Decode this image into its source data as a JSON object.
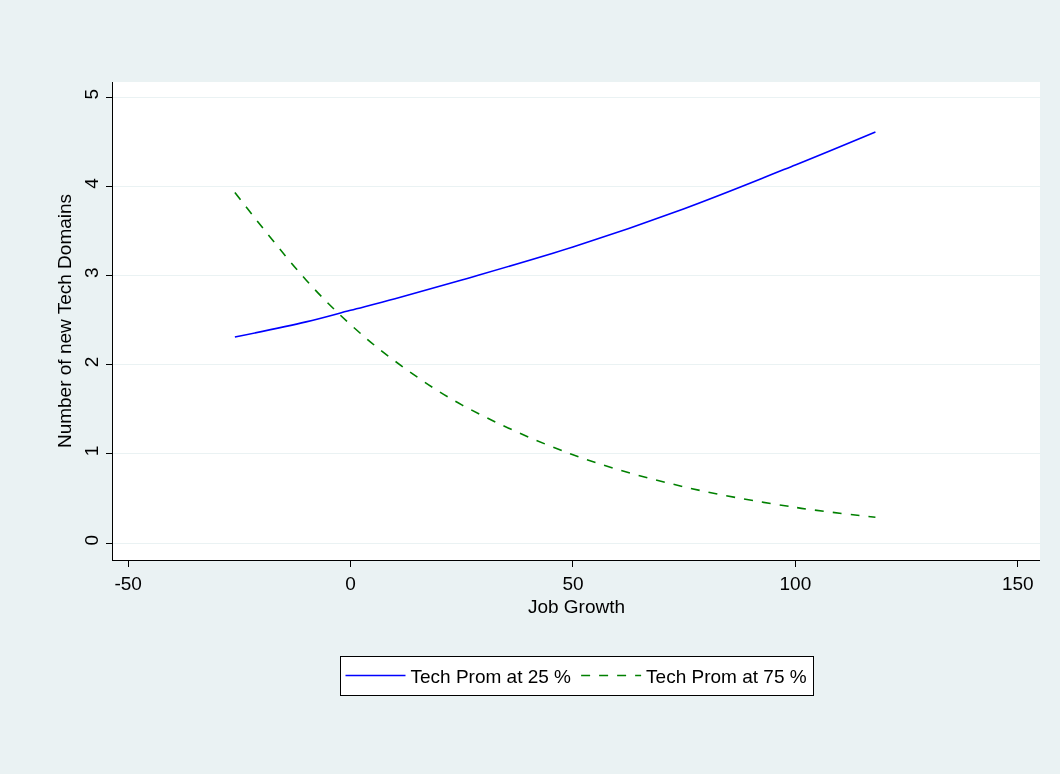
{
  "chart_data": {
    "type": "line",
    "xlabel": "Job Growth",
    "ylabel": "Number of new Tech Domains",
    "xlim": [
      -53.4,
      155
    ],
    "ylim": [
      -0.19,
      5.17
    ],
    "xticks": [
      -50,
      0,
      50,
      100,
      150
    ],
    "yticks": [
      0,
      1,
      2,
      3,
      4,
      5
    ],
    "grid": "y",
    "legend": "bottom",
    "marker": "none",
    "series": [
      {
        "name": "Tech Prom at 25 %",
        "color": "#0000ff",
        "line_style": "solid",
        "x": [
          -26,
          -10,
          0,
          10,
          25,
          50,
          75,
          100,
          118
        ],
        "values": [
          2.31,
          2.48,
          2.61,
          2.74,
          2.95,
          3.32,
          3.75,
          4.24,
          4.61
        ]
      },
      {
        "name": "Tech Prom at 75 %",
        "color": "#008000",
        "line_style": "dashed",
        "x": [
          -26,
          -10,
          0,
          10,
          25,
          50,
          75,
          100,
          118
        ],
        "values": [
          3.93,
          2.95,
          2.45,
          2.04,
          1.55,
          0.99,
          0.63,
          0.4,
          0.29
        ]
      }
    ]
  }
}
